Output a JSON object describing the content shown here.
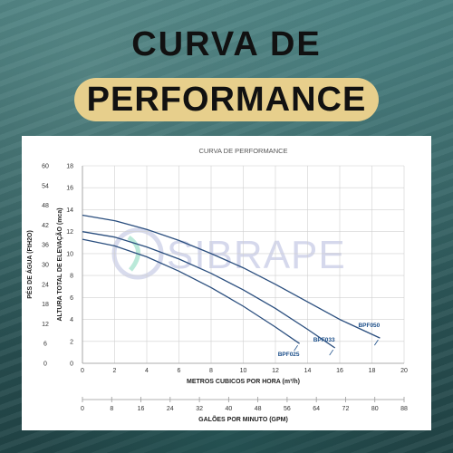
{
  "header": {
    "line1": "CURVA DE",
    "line2": "PERFORMANCE"
  },
  "colors": {
    "pill": "#e7cf8c",
    "curve": "#2a4e7e",
    "label": "#1c4f8a",
    "grid": "#d0d0d0"
  },
  "chart_data": {
    "type": "line",
    "title": "CURVA DE PERFORMANCE",
    "watermark": "SIBRAPE",
    "xlabel": "METROS CUBICOS POR HORA (m³/h)",
    "xlim": [
      0,
      20
    ],
    "x_ticks": [
      "0",
      "2",
      "4",
      "6",
      "8",
      "10",
      "12",
      "14",
      "16",
      "18",
      "20"
    ],
    "x2label": "GALÕES POR MINUTO (GPM)",
    "x2_ticks": [
      "0",
      "8",
      "16",
      "24",
      "32",
      "40",
      "48",
      "56",
      "64",
      "72",
      "80",
      "88"
    ],
    "ylabel": "ALTURA TOTAL DE ELEVAÇÃO (mca)",
    "ylim": [
      0,
      18
    ],
    "y_ticks": [
      "0",
      "2",
      "4",
      "6",
      "8",
      "10",
      "12",
      "14",
      "16",
      "18"
    ],
    "y2label": "PÉS DE ÁGUA (FtH2O)",
    "y2_ticks": [
      "0",
      "6",
      "12",
      "18",
      "24",
      "30",
      "36",
      "42",
      "48",
      "54",
      "60"
    ],
    "grid": true,
    "series": [
      {
        "name": "BPF025",
        "x": [
          0,
          2,
          4,
          6,
          8,
          10,
          12,
          13.5
        ],
        "y": [
          11.3,
          10.7,
          9.7,
          8.4,
          6.9,
          5.2,
          3.3,
          1.8
        ]
      },
      {
        "name": "BPF033",
        "x": [
          0,
          2,
          4,
          6,
          8,
          10,
          12,
          14,
          15.7
        ],
        "y": [
          12.0,
          11.5,
          10.6,
          9.5,
          8.2,
          6.7,
          5.0,
          3.1,
          1.4
        ]
      },
      {
        "name": "BPF050",
        "x": [
          0,
          2,
          4,
          6,
          8,
          10,
          12,
          14,
          16,
          18.5
        ],
        "y": [
          13.5,
          13.0,
          12.2,
          11.2,
          10.0,
          8.7,
          7.2,
          5.6,
          4.0,
          2.3
        ]
      }
    ]
  }
}
